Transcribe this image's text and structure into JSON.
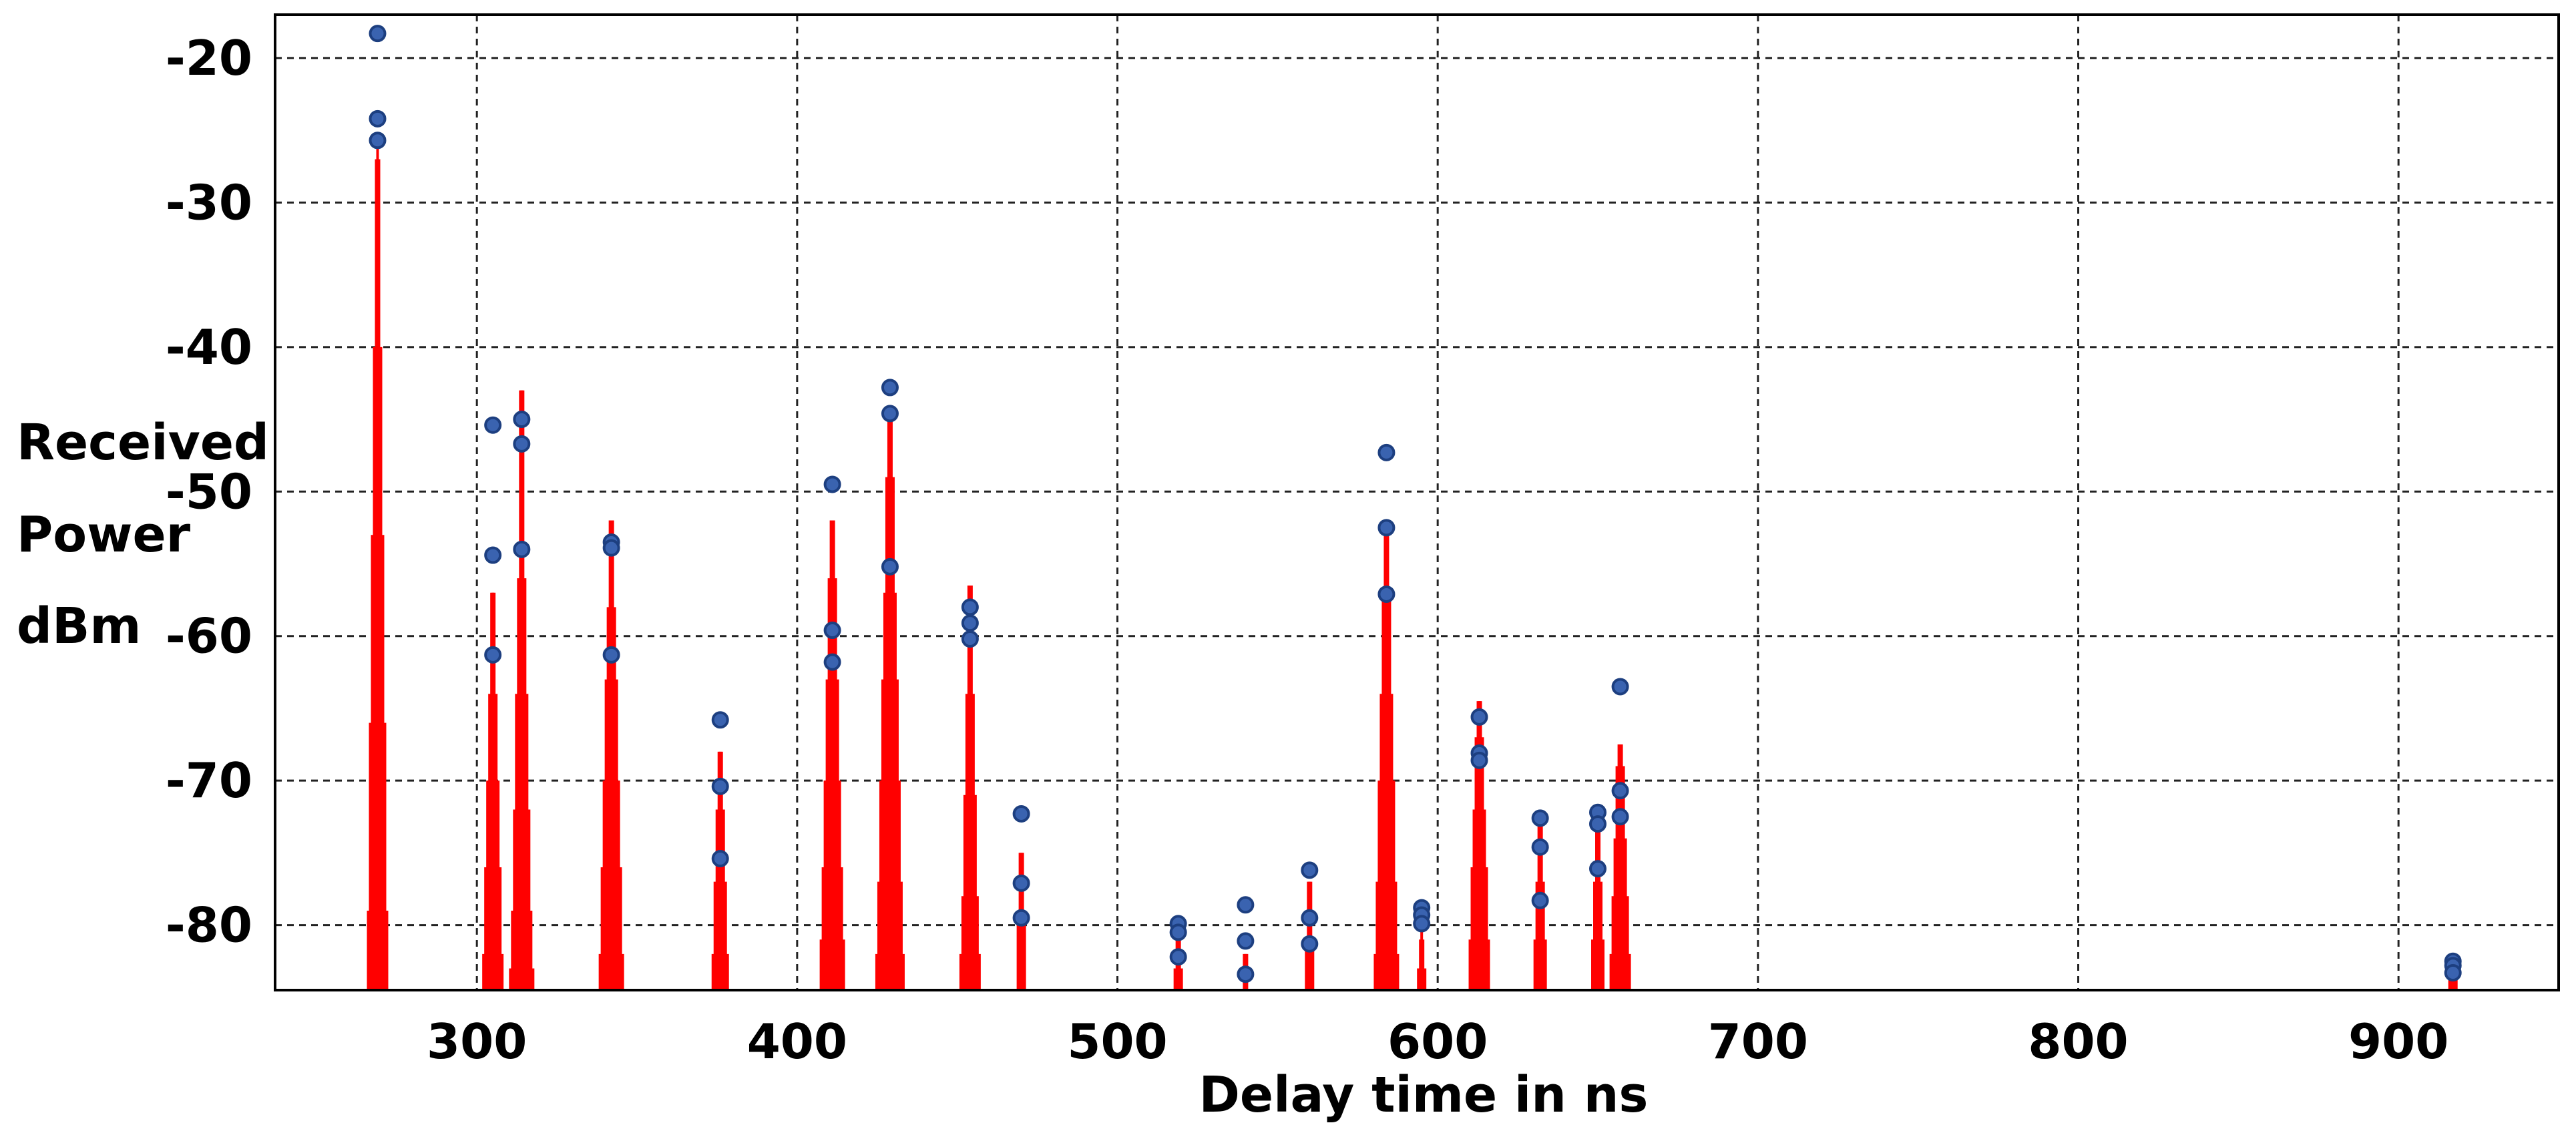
{
  "chart_data": {
    "type": "stem",
    "xlabel": "Delay time in ns",
    "ylabel_lines": [
      "Received",
      "Power",
      "dBm"
    ],
    "xlim": [
      237,
      950
    ],
    "ylim": [
      -84.5,
      -17
    ],
    "xticks": [
      300,
      400,
      500,
      600,
      700,
      800,
      900
    ],
    "yticks": [
      -20,
      -30,
      -40,
      -50,
      -60,
      -70,
      -80
    ],
    "grid": true,
    "colors": {
      "stem": "#ff0000",
      "marker": "#3a63b0",
      "grid": "#222222"
    },
    "clusters": [
      {
        "x": 269,
        "values": [
          -18.3,
          -24.2,
          -25.7,
          -27,
          -40,
          -53,
          -66,
          -79
        ]
      },
      {
        "x": 305,
        "values": [
          -45.4,
          -54.4,
          -61.3,
          -57,
          -64,
          -70,
          -76,
          -82
        ]
      },
      {
        "x": 314,
        "values": [
          -45.0,
          -46.7,
          -54.0,
          -43,
          -56,
          -64,
          -72,
          -79,
          -83
        ]
      },
      {
        "x": 342,
        "values": [
          -53.5,
          -53.9,
          -61.3,
          -52,
          -58,
          -63,
          -70,
          -76,
          -82
        ]
      },
      {
        "x": 376,
        "values": [
          -65.8,
          -70.4,
          -75.4,
          -68,
          -72,
          -77,
          -82
        ]
      },
      {
        "x": 411,
        "values": [
          -49.5,
          -59.6,
          -61.8,
          -52,
          -56,
          -63,
          -70,
          -76,
          -81
        ]
      },
      {
        "x": 429,
        "values": [
          -42.8,
          -44.6,
          -55.2,
          -45,
          -49,
          -57,
          -63,
          -70,
          -77,
          -82
        ]
      },
      {
        "x": 454,
        "values": [
          -58.0,
          -59.1,
          -60.2,
          -56.5,
          -64,
          -71,
          -78,
          -82
        ]
      },
      {
        "x": 470,
        "values": [
          -72.3,
          -77.1,
          -79.5,
          -75,
          -80
        ]
      },
      {
        "x": 519,
        "values": [
          -79.9,
          -80.5,
          -82.2,
          -81,
          -83
        ]
      },
      {
        "x": 540,
        "values": [
          -78.6,
          -81.1,
          -83.4,
          -82
        ]
      },
      {
        "x": 560,
        "values": [
          -76.2,
          -79.5,
          -81.3,
          -77,
          -81
        ]
      },
      {
        "x": 584,
        "values": [
          -47.3,
          -52.5,
          -57.1,
          -53,
          -57,
          -64,
          -70,
          -77,
          -82
        ]
      },
      {
        "x": 595,
        "values": [
          -78.8,
          -79.3,
          -79.9,
          -81,
          -83
        ]
      },
      {
        "x": 613,
        "values": [
          -65.6,
          -68.1,
          -68.6,
          -64.5,
          -67,
          -72,
          -76,
          -81
        ]
      },
      {
        "x": 632,
        "values": [
          -72.6,
          -74.6,
          -78.3,
          -73,
          -77,
          -81
        ]
      },
      {
        "x": 650,
        "values": [
          -72.2,
          -73.0,
          -76.1,
          -73,
          -77,
          -81
        ]
      },
      {
        "x": 657,
        "values": [
          -63.5,
          -70.7,
          -72.5,
          -67.5,
          -69,
          -74,
          -78,
          -82
        ]
      },
      {
        "x": 917,
        "values": [
          -82.5,
          -82.8,
          -83.3,
          -82,
          -83.5
        ]
      }
    ]
  }
}
